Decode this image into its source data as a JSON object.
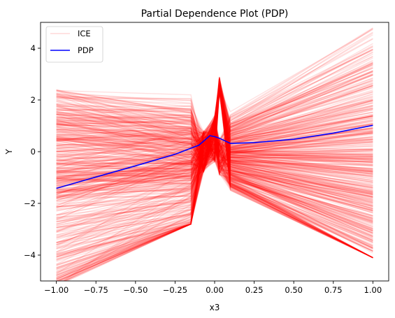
{
  "chart_data": {
    "type": "line",
    "title": "Partial Dependence Plot (PDP)",
    "xlabel": "x3",
    "ylabel": "Y",
    "xlim": [
      -1.1,
      1.1
    ],
    "ylim": [
      -5.0,
      5.0
    ],
    "x_ticks": [
      -1.0,
      -0.75,
      -0.5,
      -0.25,
      0.0,
      0.25,
      0.5,
      0.75,
      1.0
    ],
    "x_tick_labels": [
      "−1.00",
      "−0.75",
      "−0.50",
      "−0.25",
      "0.00",
      "0.25",
      "0.50",
      "0.75",
      "1.00"
    ],
    "y_ticks": [
      -4,
      -2,
      0,
      2,
      4
    ],
    "y_tick_labels": [
      "−4",
      "−2",
      "0",
      "2",
      "4"
    ],
    "grid": false,
    "legend": {
      "placement": "top-left",
      "entries": [
        {
          "label": "ICE",
          "color": "#ff0000",
          "alpha": 0.15
        },
        {
          "label": "PDP",
          "color": "#0000ff",
          "alpha": 1.0
        }
      ]
    },
    "series": [
      {
        "name": "PDP",
        "color": "#0000ff",
        "x": [
          -1.0,
          -0.75,
          -0.5,
          -0.25,
          -0.1,
          -0.03,
          0.0,
          0.03,
          0.1,
          0.25,
          0.5,
          0.75,
          1.0
        ],
        "y": [
          -1.42,
          -0.98,
          -0.55,
          -0.1,
          0.25,
          0.62,
          0.58,
          0.52,
          0.32,
          0.35,
          0.48,
          0.72,
          1.02
        ]
      }
    ],
    "ice": {
      "name": "ICE",
      "color": "#ff0000",
      "alpha": 0.12,
      "count": 500,
      "x": [
        -1.0,
        -0.15,
        -0.07,
        0.0,
        0.03,
        0.1,
        1.0
      ],
      "notch_x": [
        -0.07,
        0.03
      ],
      "left_end_range": [
        -5.2,
        2.4
      ],
      "right_end_range": [
        -4.1,
        4.8
      ],
      "seed": 7
    }
  }
}
